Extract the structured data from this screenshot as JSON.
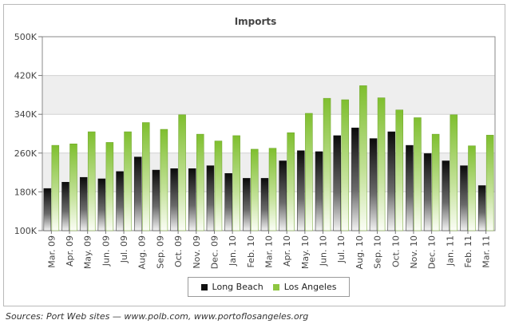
{
  "source_note": "Sources: Port Web sites — www.polb.com, www.portoflosangeles.org",
  "chart_data": {
    "type": "bar",
    "title": "Imports",
    "xlabel": "",
    "ylabel": "",
    "ylim": [
      100000,
      500000
    ],
    "y_ticks": [
      "100K",
      "180K",
      "260K",
      "340K",
      "420K",
      "500K"
    ],
    "y_tick_values": [
      100000,
      180000,
      260000,
      340000,
      420000,
      500000
    ],
    "legend_position": "bottom",
    "categories": [
      "Mar. 09",
      "Apr. 09",
      "May. 09",
      "Jun. 09",
      "Jul. 09",
      "Aug. 09",
      "Sep. 09",
      "Oct. 09",
      "Nov. 09",
      "Dec. 09",
      "Jan. 10",
      "Feb. 10",
      "Mar. 10",
      "Apr. 10",
      "May. 10",
      "Jun. 10",
      "Jul. 10",
      "Aug. 10",
      "Sep. 10",
      "Oct. 10",
      "Nov. 10",
      "Dec. 10",
      "Jan. 11",
      "Feb. 11",
      "Mar. 11"
    ],
    "series": [
      {
        "name": "Long Beach",
        "color": "#111111",
        "values": [
          187000,
          200000,
          210000,
          207000,
          222000,
          252000,
          225000,
          228000,
          228000,
          234000,
          218000,
          208000,
          208000,
          244000,
          265000,
          263000,
          296000,
          312000,
          290000,
          304000,
          276000,
          259000,
          244000,
          234000,
          193000
        ]
      },
      {
        "name": "Los Angeles",
        "color": "#8ec641",
        "values": [
          276000,
          279000,
          304000,
          282000,
          304000,
          323000,
          309000,
          339000,
          299000,
          285000,
          296000,
          268000,
          270000,
          302000,
          342000,
          373000,
          370000,
          399000,
          374000,
          349000,
          333000,
          299000,
          339000,
          275000,
          297000
        ]
      }
    ]
  }
}
